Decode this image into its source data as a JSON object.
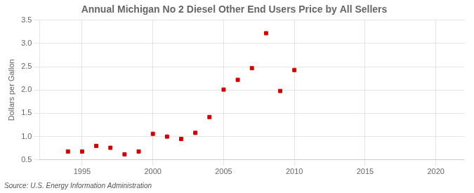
{
  "chart_data": {
    "type": "scatter",
    "title": "Annual Michigan No 2 Diesel Other End Users Price by All Sellers",
    "ylabel": "Dollars per Gallon",
    "annotations": [
      "Source: U.S. Energy Information Administration"
    ],
    "x": [
      1994,
      1995,
      1996,
      1997,
      1998,
      1999,
      2000,
      2001,
      2002,
      2003,
      2004,
      2005,
      2006,
      2007,
      2008,
      2009,
      2010
    ],
    "values": [
      0.68,
      0.68,
      0.8,
      0.76,
      0.62,
      0.68,
      1.06,
      1.0,
      0.95,
      1.08,
      1.42,
      2.01,
      2.22,
      2.47,
      3.22,
      1.98,
      2.43
    ],
    "color": "#cc0000",
    "marker": "square",
    "xlim": [
      1992,
      2022
    ],
    "ylim": [
      0.5,
      3.5
    ],
    "xticks": [
      1995,
      2000,
      2005,
      2010,
      2015,
      2020
    ],
    "yticks": [
      0.5,
      {
        "value": 1.0,
        "label": "1.0"
      },
      1.5,
      {
        "value": 2.0,
        "label": "2.0"
      },
      2.5,
      {
        "value": 3.0,
        "label": "3.0"
      },
      3.5
    ],
    "grid": true
  }
}
